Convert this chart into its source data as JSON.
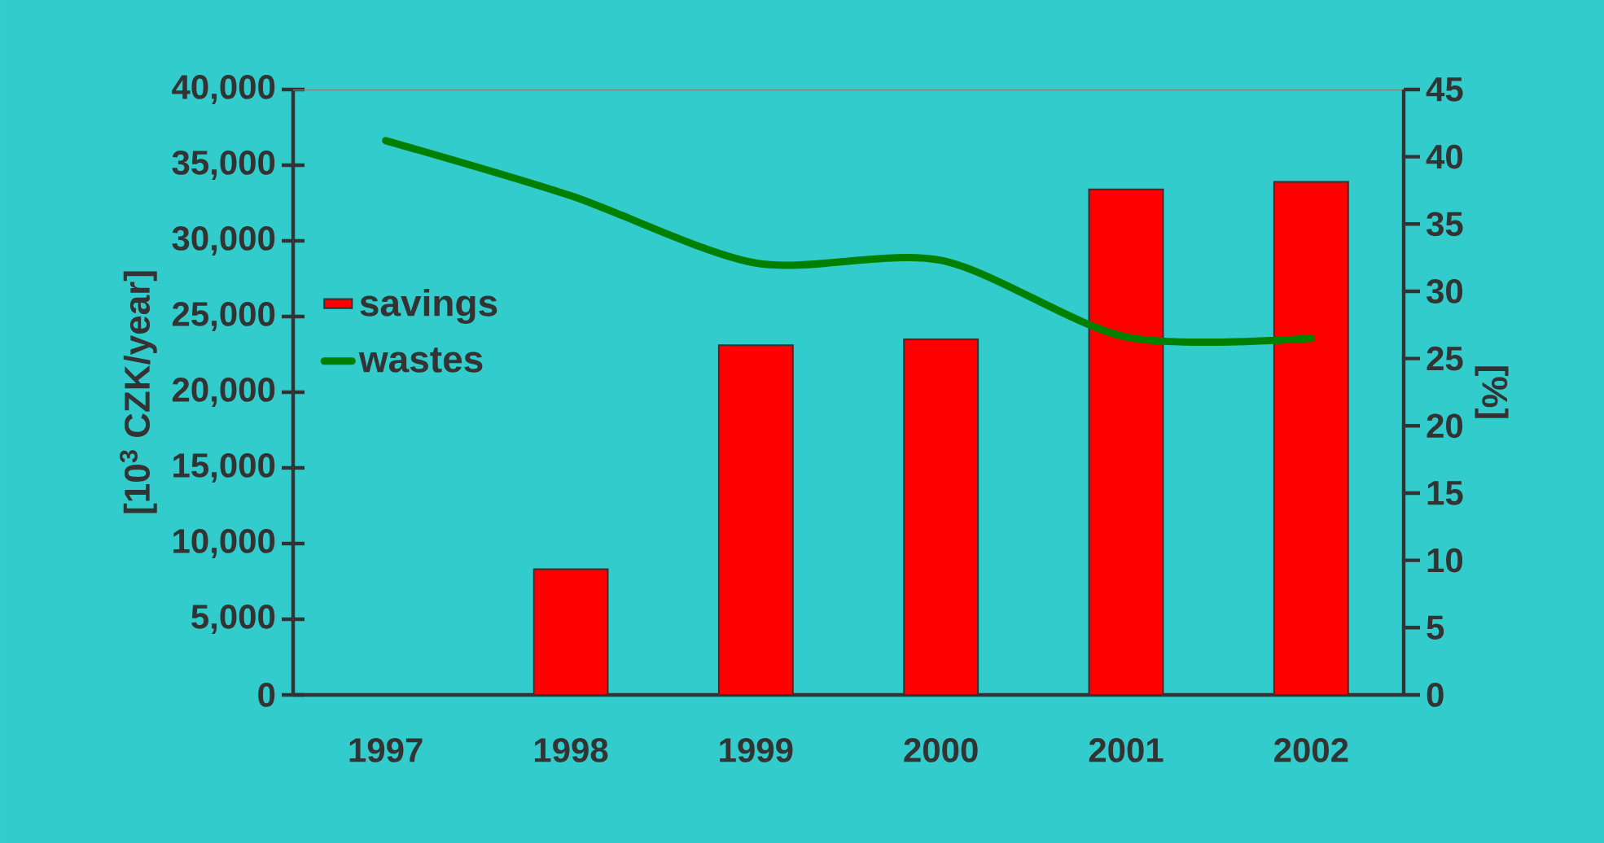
{
  "chart_data": {
    "type": "bar",
    "categories": [
      "1997",
      "1998",
      "1999",
      "2000",
      "2001",
      "2002"
    ],
    "ylabel": "[10$^{3}$ CZK/year]",
    "y2label": "[%]",
    "ylim": [
      0,
      40000
    ],
    "yticks": [
      {
        "value": 0,
        "label": "0"
      },
      {
        "value": 5000,
        "label": "5,000"
      },
      {
        "value": 10000,
        "label": "10,000"
      },
      {
        "value": 15000,
        "label": "15,000"
      },
      {
        "value": 20000,
        "label": "20,000"
      },
      {
        "value": 25000,
        "label": "25,000"
      },
      {
        "value": 30000,
        "label": "30,000"
      },
      {
        "value": 35000,
        "label": "35,000"
      },
      {
        "value": 40000,
        "label": "40,000"
      }
    ],
    "y2lim": [
      0,
      45
    ],
    "y2ticks": [
      0,
      5,
      10,
      15,
      20,
      25,
      30,
      35,
      40,
      45
    ],
    "series": [
      {
        "name": "savings",
        "color": "#ff0000",
        "values": [
          null,
          8300,
          23100,
          23500,
          33400,
          33900
        ]
      },
      {
        "name": "wastes",
        "type": "line",
        "axis": "y2",
        "color": "#008000",
        "values": [
          41.2,
          37.1,
          32.1,
          32.3,
          26.6,
          26.5
        ]
      }
    ],
    "legend": "left",
    "grid": false,
    "marker": "none",
    "line_style": "solid"
  }
}
